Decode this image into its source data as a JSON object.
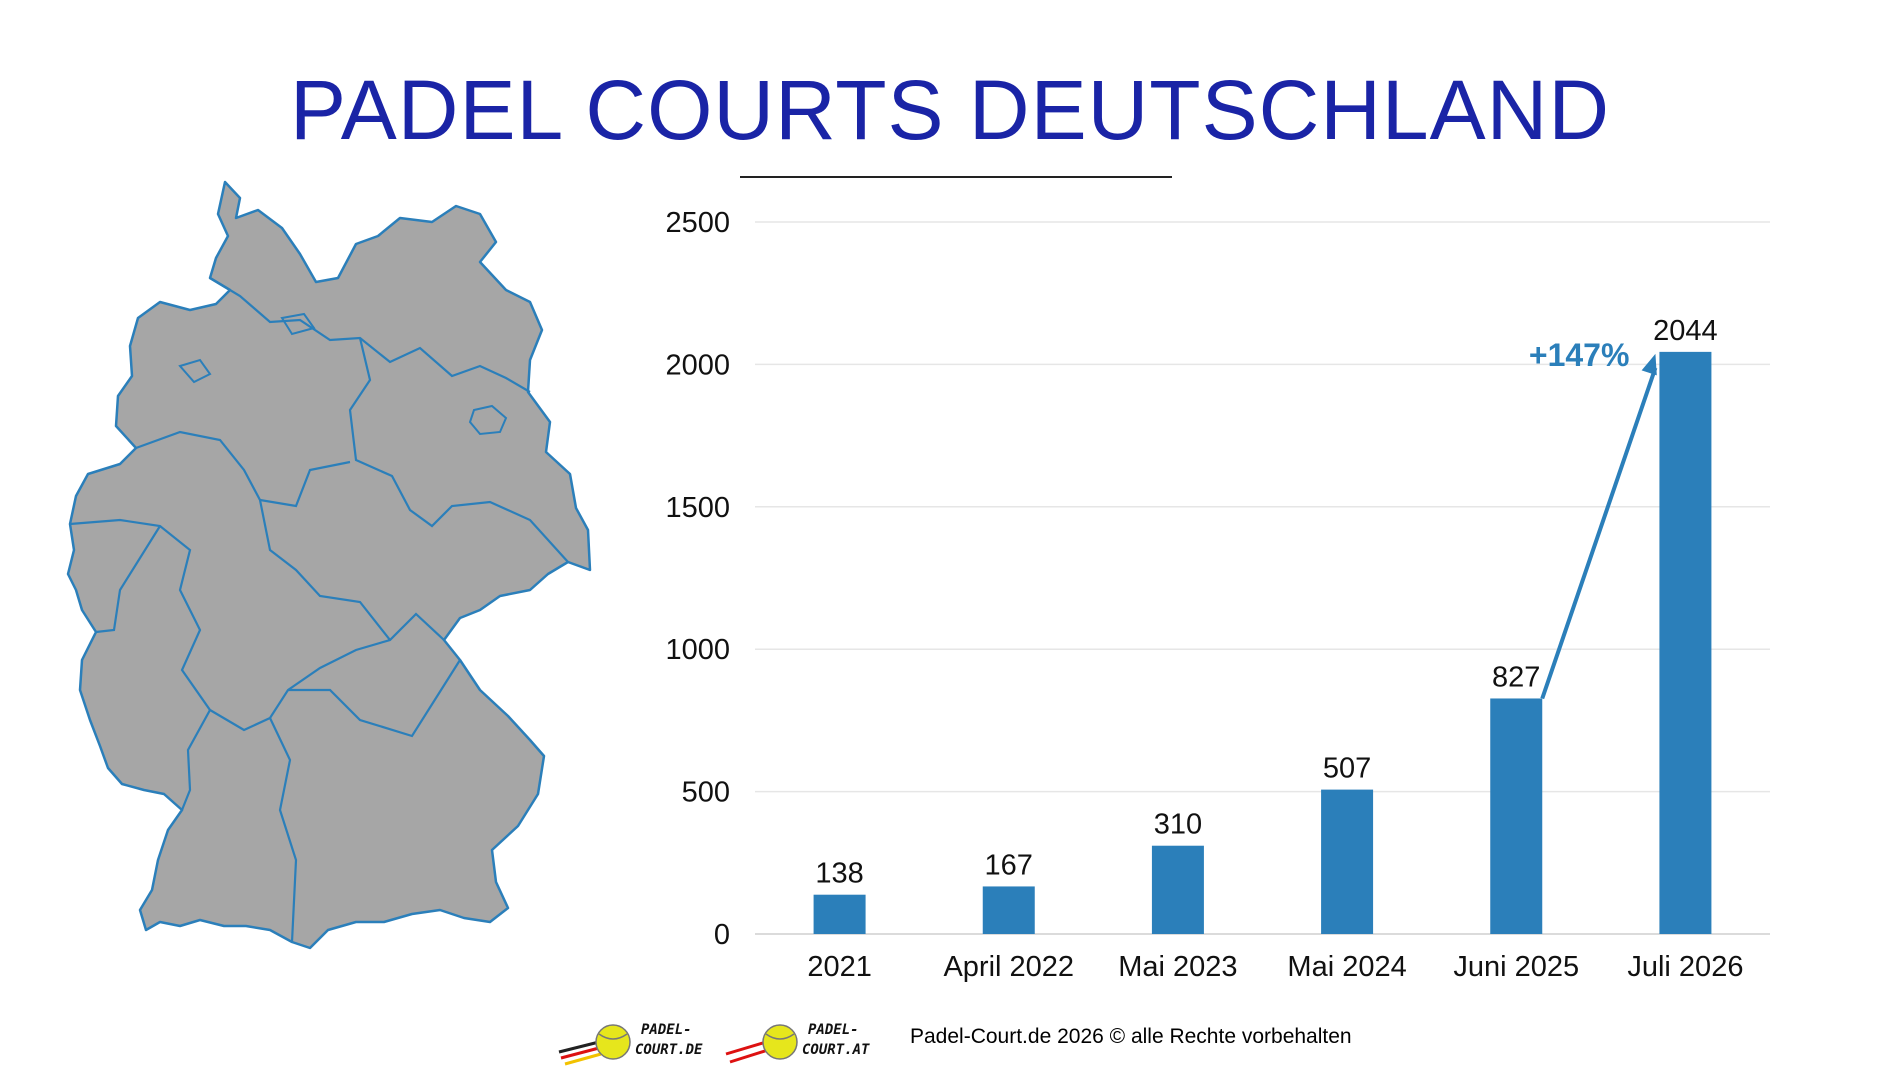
{
  "title": "PADEL COURTS DEUTSCHLAND",
  "colors": {
    "title": "#1a24a6",
    "bar": "#2b7fba",
    "map_fill": "#a6a6a6",
    "map_stroke": "#2b7fba",
    "annotation": "#2b7fba"
  },
  "chart_data": {
    "type": "bar",
    "categories": [
      "2021",
      "April 2022",
      "Mai 2023",
      "Mai 2024",
      "Juni 2025",
      "Juli 2026"
    ],
    "values": [
      138,
      167,
      310,
      507,
      827,
      2044
    ],
    "value_labels": [
      "138",
      "167",
      "310",
      "507",
      "827",
      "2044"
    ],
    "ylim": [
      0,
      2500
    ],
    "yticks": [
      0,
      500,
      1000,
      1500,
      2000,
      2500
    ],
    "ytick_labels": [
      "0",
      "500",
      "1000",
      "1500",
      "2000",
      "2500"
    ],
    "grid": true,
    "annotation": {
      "text": "+147%",
      "from_category": "Juni 2025",
      "to_category": "Juli 2026",
      "icon": "arrow-icon"
    }
  },
  "map": {
    "icon": "germany-map-icon"
  },
  "footer": {
    "logos": [
      {
        "line1": "PADEL-",
        "line2": "COURT.DE",
        "icon": "padel-ball-icon"
      },
      {
        "line1": "PADEL-",
        "line2": "COURT.AT",
        "icon": "padel-ball-icon"
      }
    ],
    "copyright": "Padel-Court.de 2026 © alle Rechte vorbehalten"
  }
}
